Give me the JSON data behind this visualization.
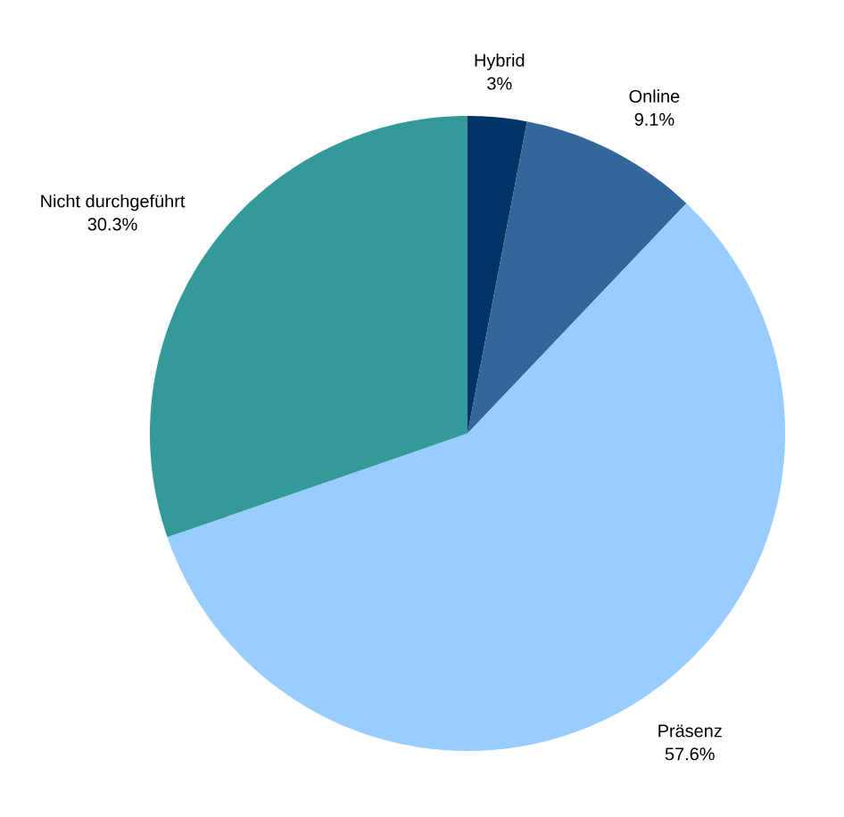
{
  "chart_data": {
    "type": "pie",
    "categories": [
      "Hybrid",
      "Online",
      "Präsenz",
      "Nicht durchgeführt"
    ],
    "values": [
      3,
      9.1,
      57.6,
      30.3
    ],
    "value_labels": [
      "3%",
      "9.1%",
      "57.6%",
      "30.3%"
    ],
    "colors": [
      "#003366",
      "#336699",
      "#99ccff",
      "#339999"
    ]
  }
}
